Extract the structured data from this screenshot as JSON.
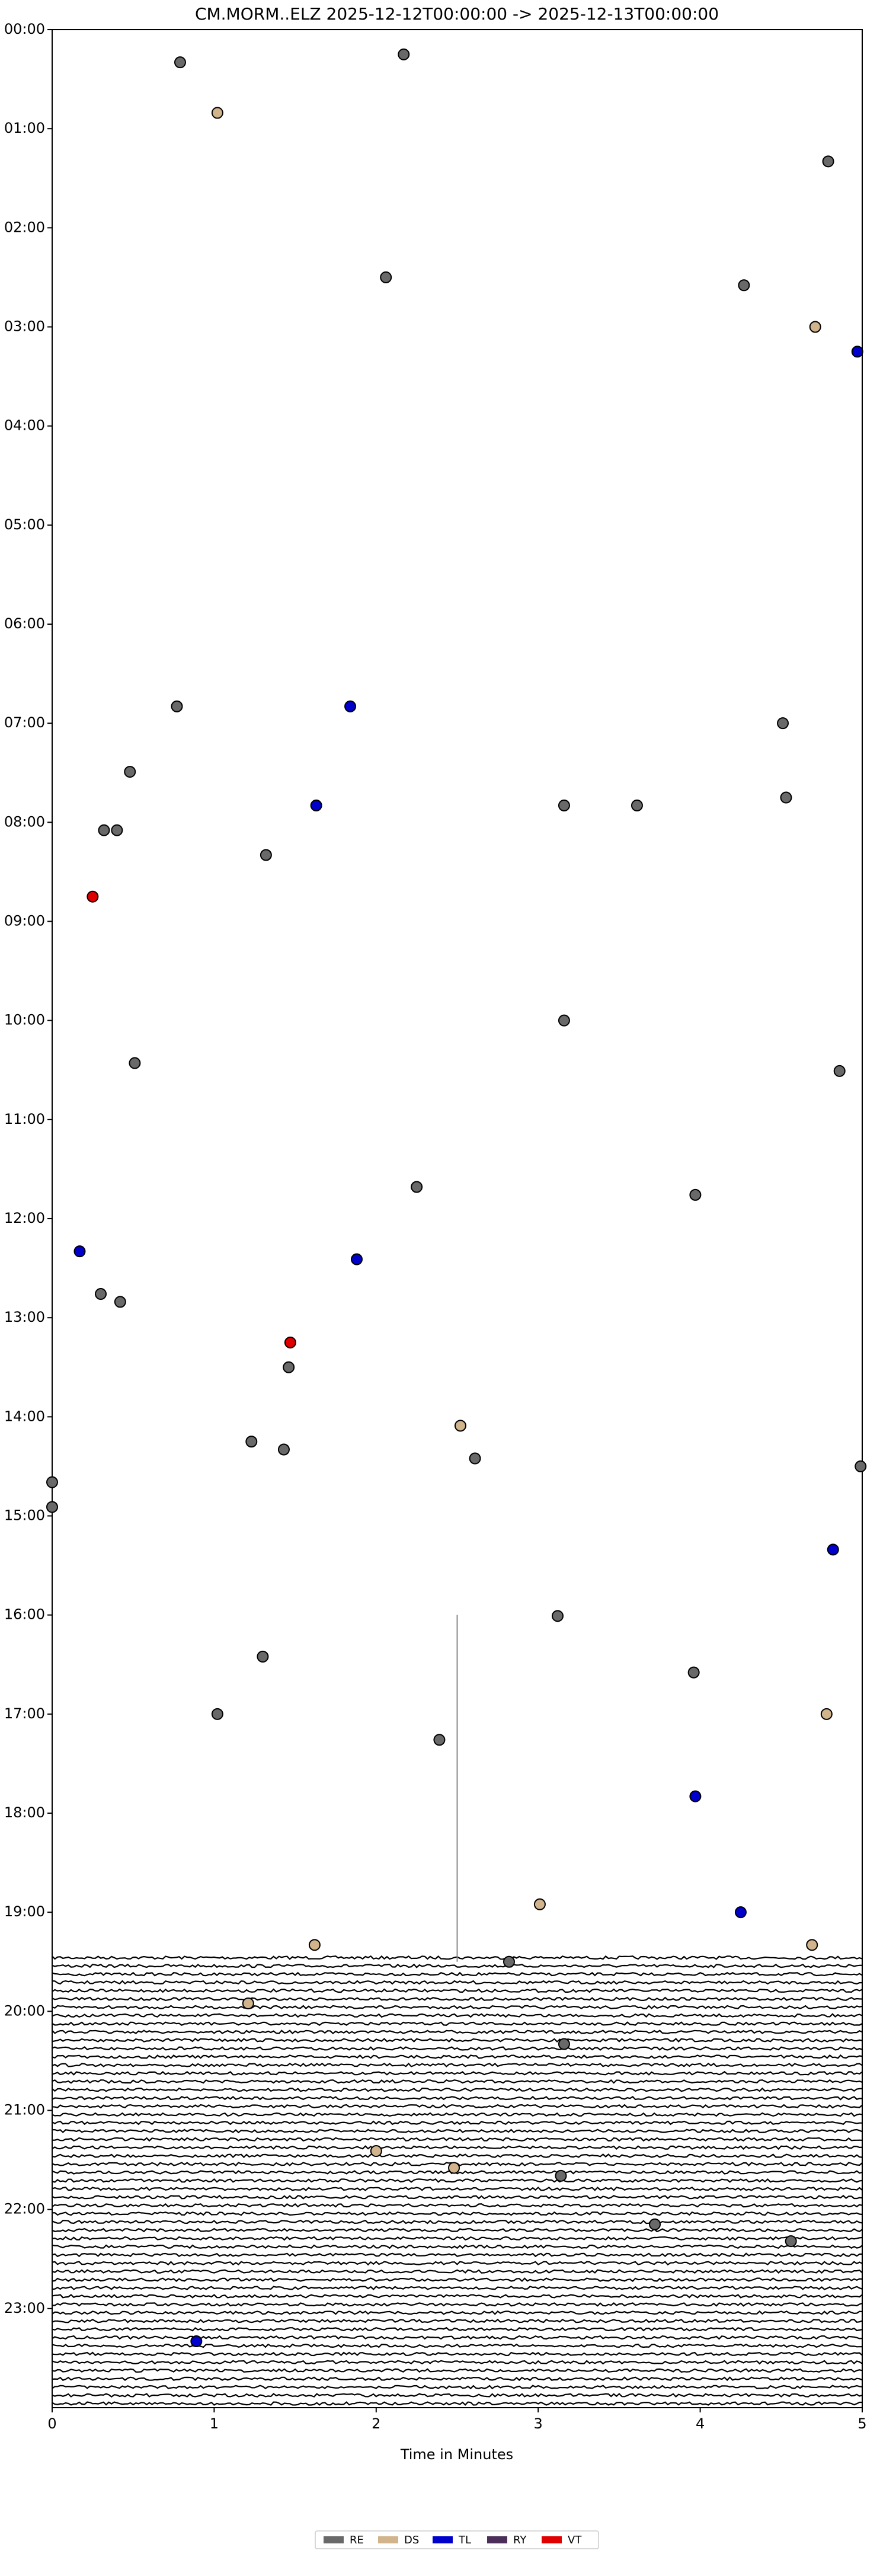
{
  "chart_data": {
    "type": "scatter",
    "title": "CM.MORM..ELZ  2025-12-12T00:00:00 -> 2025-12-13T00:00:00",
    "x_label": "Time in Minutes",
    "xlim": [
      0,
      5
    ],
    "xticks": [
      0,
      1,
      2,
      3,
      4,
      5
    ],
    "ylim": [
      24,
      0
    ],
    "yticks": [
      {
        "value": 0,
        "label": "00:00"
      },
      {
        "value": 1,
        "label": "01:00"
      },
      {
        "value": 2,
        "label": "02:00"
      },
      {
        "value": 3,
        "label": "03:00"
      },
      {
        "value": 4,
        "label": "04:00"
      },
      {
        "value": 5,
        "label": "05:00"
      },
      {
        "value": 6,
        "label": "06:00"
      },
      {
        "value": 7,
        "label": "07:00"
      },
      {
        "value": 8,
        "label": "08:00"
      },
      {
        "value": 9,
        "label": "09:00"
      },
      {
        "value": 10,
        "label": "10:00"
      },
      {
        "value": 11,
        "label": "11:00"
      },
      {
        "value": 12,
        "label": "12:00"
      },
      {
        "value": 13,
        "label": "13:00"
      },
      {
        "value": 14,
        "label": "14:00"
      },
      {
        "value": 15,
        "label": "15:00"
      },
      {
        "value": 16,
        "label": "16:00"
      },
      {
        "value": 17,
        "label": "17:00"
      },
      {
        "value": 18,
        "label": "18:00"
      },
      {
        "value": 19,
        "label": "19:00"
      },
      {
        "value": 20,
        "label": "20:00"
      },
      {
        "value": 21,
        "label": "21:00"
      },
      {
        "value": 22,
        "label": "22:00"
      },
      {
        "value": 23,
        "label": "23:00"
      }
    ],
    "series": [
      {
        "name": "RE",
        "color": "#696969",
        "x": [
          0.79,
          2.17,
          4.79,
          2.06,
          4.27,
          0.77,
          4.51,
          0.48,
          4.53,
          0.32,
          0.4,
          3.16,
          3.61,
          1.32,
          3.16,
          0.51,
          4.86,
          2.25,
          3.97,
          0.3,
          0.42,
          1.46,
          1.23,
          1.43,
          2.61,
          0,
          0,
          4.99,
          3.12,
          1.3,
          3.96,
          1.02,
          2.39,
          2.82,
          3.16,
          3.14,
          3.72,
          4.56
        ],
        "values": [
          0.33,
          0.25,
          1.33,
          2.5,
          2.58,
          6.83,
          7.0,
          7.49,
          7.75,
          8.08,
          8.08,
          7.83,
          7.83,
          8.33,
          10.0,
          10.43,
          10.51,
          11.68,
          11.76,
          12.76,
          12.84,
          13.5,
          14.25,
          14.33,
          14.42,
          14.66,
          14.91,
          14.5,
          16.01,
          16.42,
          16.58,
          17.0,
          17.26,
          19.5,
          20.33,
          21.66,
          22.15,
          22.32
        ]
      },
      {
        "name": "DS",
        "color": "#d2b48c",
        "x": [
          1.02,
          4.71,
          2.52,
          4.78,
          3.01,
          1.62,
          4.69,
          1.21,
          2.0,
          2.48
        ],
        "values": [
          0.84,
          3.0,
          14.09,
          17.0,
          18.92,
          19.33,
          19.33,
          19.92,
          21.41,
          21.58
        ]
      },
      {
        "name": "TL",
        "color": "#0000cd",
        "x": [
          4.97,
          1.84,
          1.63,
          0.17,
          1.88,
          4.82,
          3.97,
          4.25,
          0.89
        ],
        "values": [
          3.25,
          6.83,
          7.83,
          12.33,
          12.41,
          15.34,
          17.83,
          19.0,
          23.33
        ]
      },
      {
        "name": "RY",
        "color": "#4b2f5a",
        "x": [],
        "values": []
      },
      {
        "name": "VT",
        "color": "#e00000",
        "x": [
          0.25,
          1.47
        ],
        "values": [
          8.75,
          13.25
        ]
      }
    ]
  }
}
